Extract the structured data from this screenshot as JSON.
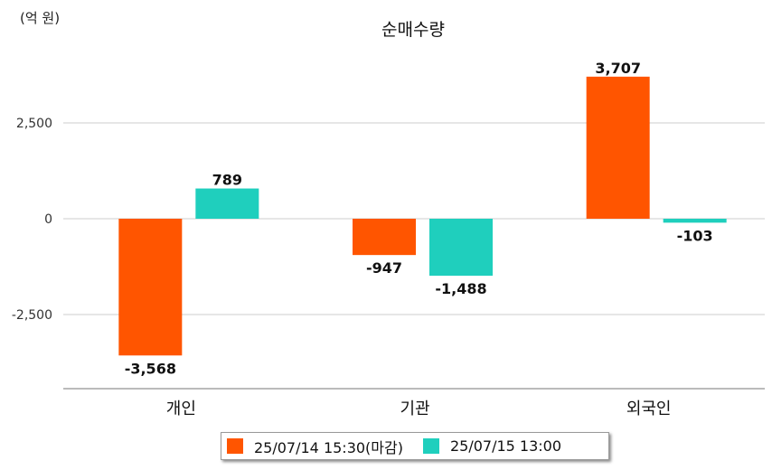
{
  "unit_label": "(억 원)",
  "chart_data": {
    "type": "bar",
    "title": "순매수량",
    "categories": [
      "개인",
      "기관",
      "외국인"
    ],
    "series": [
      {
        "name": "25/07/14 15:30(마감)",
        "color": "#ff5500",
        "values": [
          -3568,
          -947,
          3707
        ],
        "labels": [
          "-3,568",
          "-947",
          "3,707"
        ]
      },
      {
        "name": "25/07/15 13:00",
        "color": "#1fcfbd",
        "values": [
          789,
          -1488,
          -103
        ],
        "labels": [
          "789",
          "-1,488",
          "-103"
        ]
      }
    ],
    "yticks": [
      2500,
      0,
      -2500
    ],
    "ytick_labels": [
      "2,500",
      "0",
      "-2,500"
    ],
    "ylim": [
      -4400,
      4600
    ],
    "grid": true,
    "legend_position": "bottom"
  }
}
